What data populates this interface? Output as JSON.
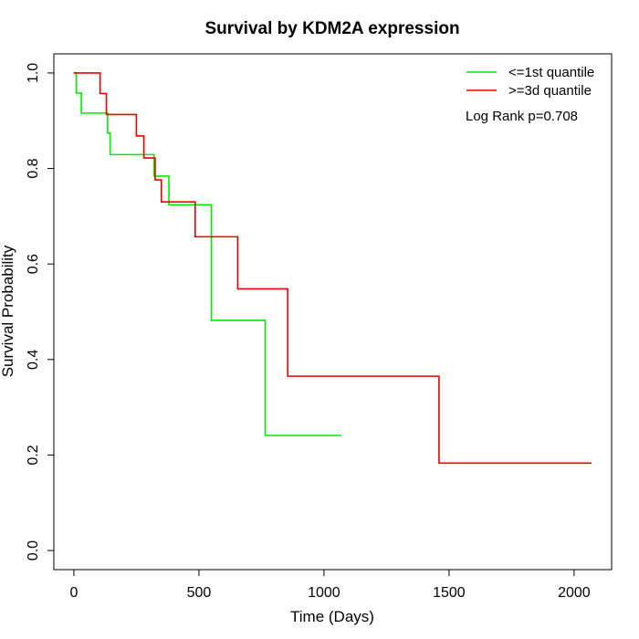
{
  "chart_data": {
    "type": "line",
    "title": "Survival by KDM2A expression",
    "xlabel": "Time (Days)",
    "ylabel": "Survival Probability",
    "xlim": [
      -80,
      2150
    ],
    "ylim": [
      -0.04,
      1.04
    ],
    "xticks": [
      0,
      500,
      1000,
      1500,
      2000
    ],
    "yticks": [
      0.0,
      0.2,
      0.4,
      0.6,
      0.8,
      1.0
    ],
    "xtick_labels": [
      "0",
      "500",
      "1000",
      "1500",
      "2000"
    ],
    "ytick_labels": [
      "0.0",
      "0.2",
      "0.4",
      "0.6",
      "0.8",
      "1.0"
    ],
    "grid": false,
    "legend_position": "top-right",
    "annotation": "Log Rank p=0.708",
    "series": [
      {
        "name": "<=1st quantile",
        "color": "#00ee00",
        "step": true,
        "x": [
          0,
          10,
          30,
          135,
          145,
          320,
          330,
          380,
          550,
          765,
          1070
        ],
        "y": [
          1.0,
          0.958,
          0.916,
          0.874,
          0.829,
          0.784,
          0.784,
          0.724,
          0.482,
          0.241,
          0.241
        ]
      },
      {
        "name": ">=3d quantile",
        "color": "#ee0000",
        "step": true,
        "x": [
          0,
          105,
          130,
          250,
          280,
          325,
          350,
          485,
          655,
          855,
          1460,
          2070
        ],
        "y": [
          1.0,
          0.957,
          0.913,
          0.868,
          0.822,
          0.776,
          0.73,
          0.657,
          0.548,
          0.365,
          0.183,
          0.183
        ]
      }
    ]
  }
}
